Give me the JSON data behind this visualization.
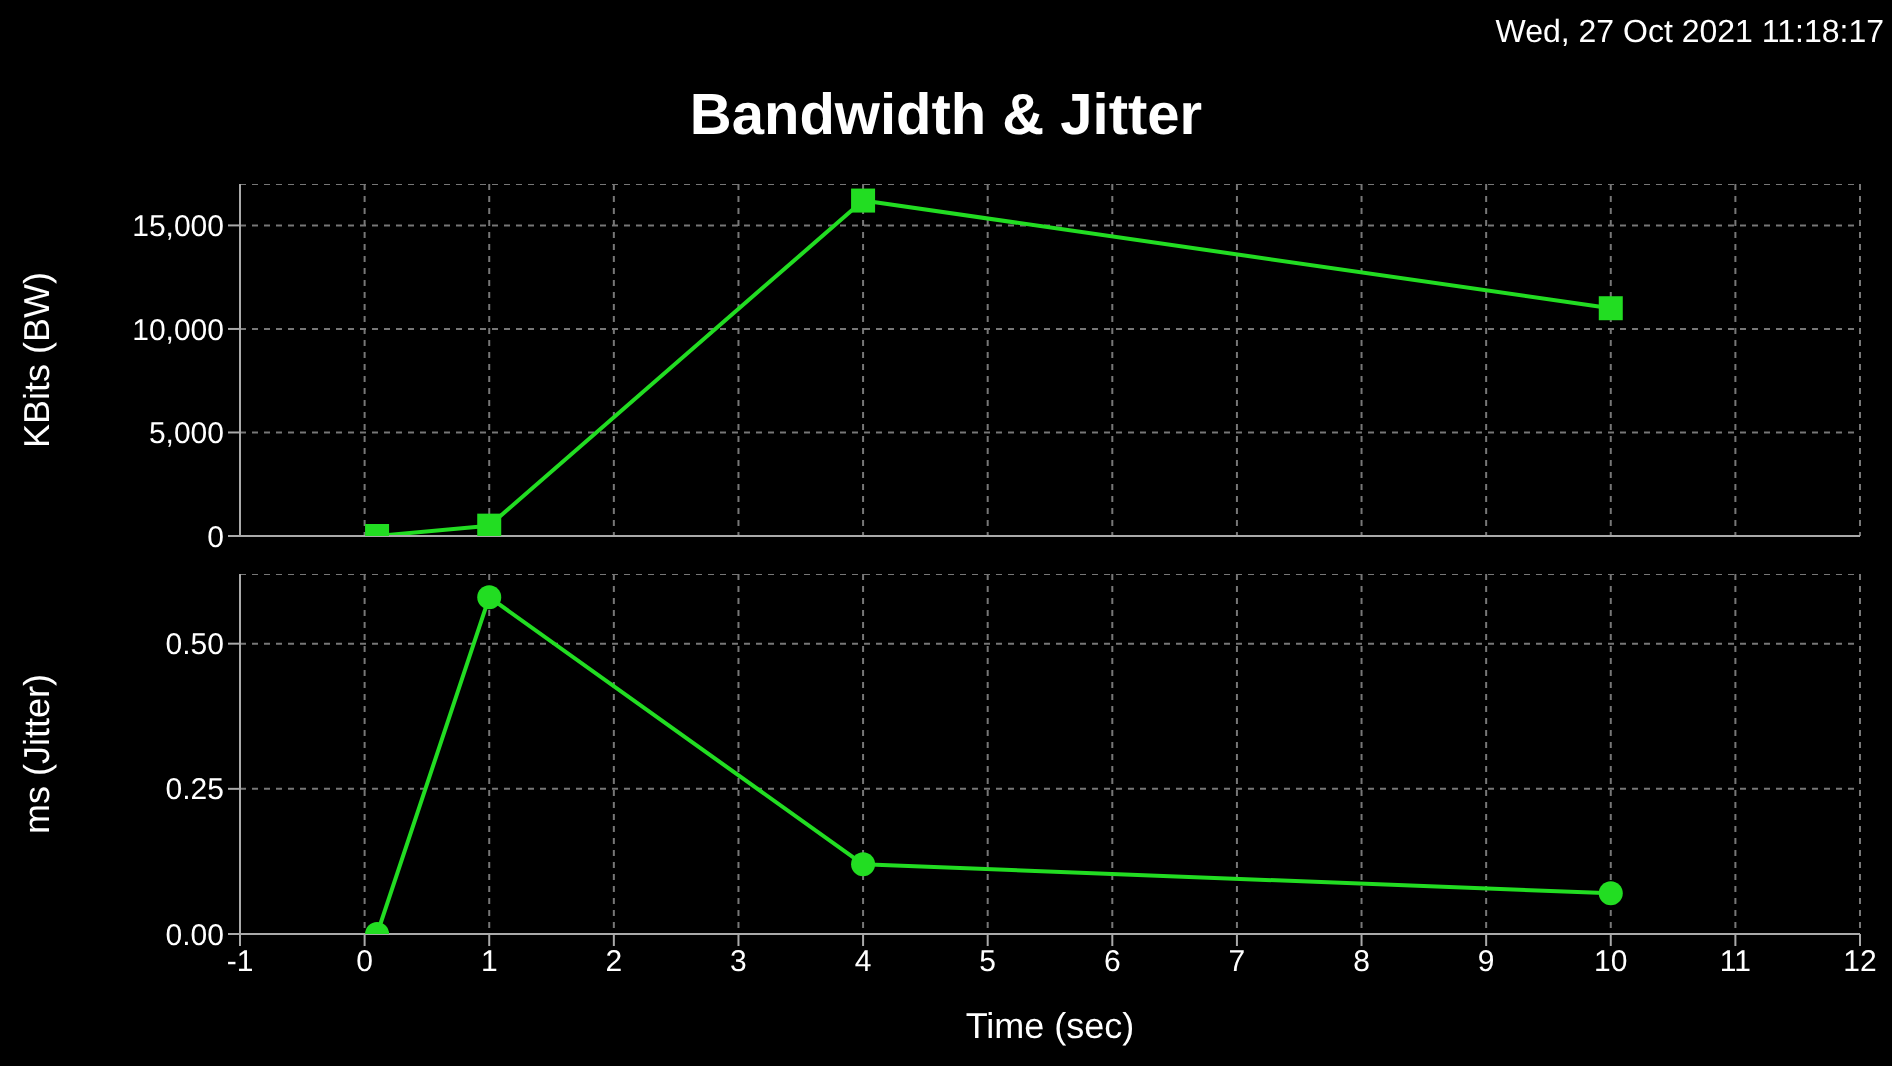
{
  "chart_data": [
    {
      "type": "line",
      "title": "Bandwidth & Jitter",
      "annotations": [
        "Wed, 27 Oct 2021 11:18:17"
      ],
      "ylabel": "KBits (BW)",
      "x": [
        0.1,
        1,
        4,
        10
      ],
      "series": [
        {
          "color": "#22dd22",
          "values": [
            0,
            500,
            16200,
            11000
          ]
        }
      ],
      "xlim": [
        -1,
        12
      ],
      "xticks": [
        -1,
        0,
        1,
        2,
        3,
        4,
        5,
        6,
        7,
        8,
        9,
        10,
        11,
        12
      ],
      "ylim": [
        0,
        17000
      ],
      "yticks": [
        {
          "value": 0,
          "label": "0"
        },
        {
          "value": 5000,
          "label": "5,000"
        },
        {
          "value": 10000,
          "label": "10,000"
        },
        {
          "value": 15000,
          "label": "15,000"
        }
      ],
      "tick_labels": "y",
      "grid": true,
      "marker": "square",
      "line_style": "solid",
      "legend": false
    },
    {
      "type": "line",
      "xlabel": "Time (sec)",
      "ylabel": "ms (Jitter)",
      "x": [
        0.1,
        1,
        4,
        10
      ],
      "series": [
        {
          "color": "#22dd22",
          "values": [
            0,
            0.58,
            0.12,
            0.07
          ]
        }
      ],
      "xlim": [
        -1,
        12
      ],
      "xticks": [
        -1,
        0,
        1,
        2,
        3,
        4,
        5,
        6,
        7,
        8,
        9,
        10,
        11,
        12
      ],
      "ylim": [
        0,
        0.62
      ],
      "yticks": [
        {
          "value": 0,
          "label": "0.00"
        },
        {
          "value": 0.25,
          "label": "0.25"
        },
        {
          "value": 0.5,
          "label": "0.50"
        }
      ],
      "grid": true,
      "marker": "circle",
      "line_style": "solid",
      "legend": false
    }
  ]
}
